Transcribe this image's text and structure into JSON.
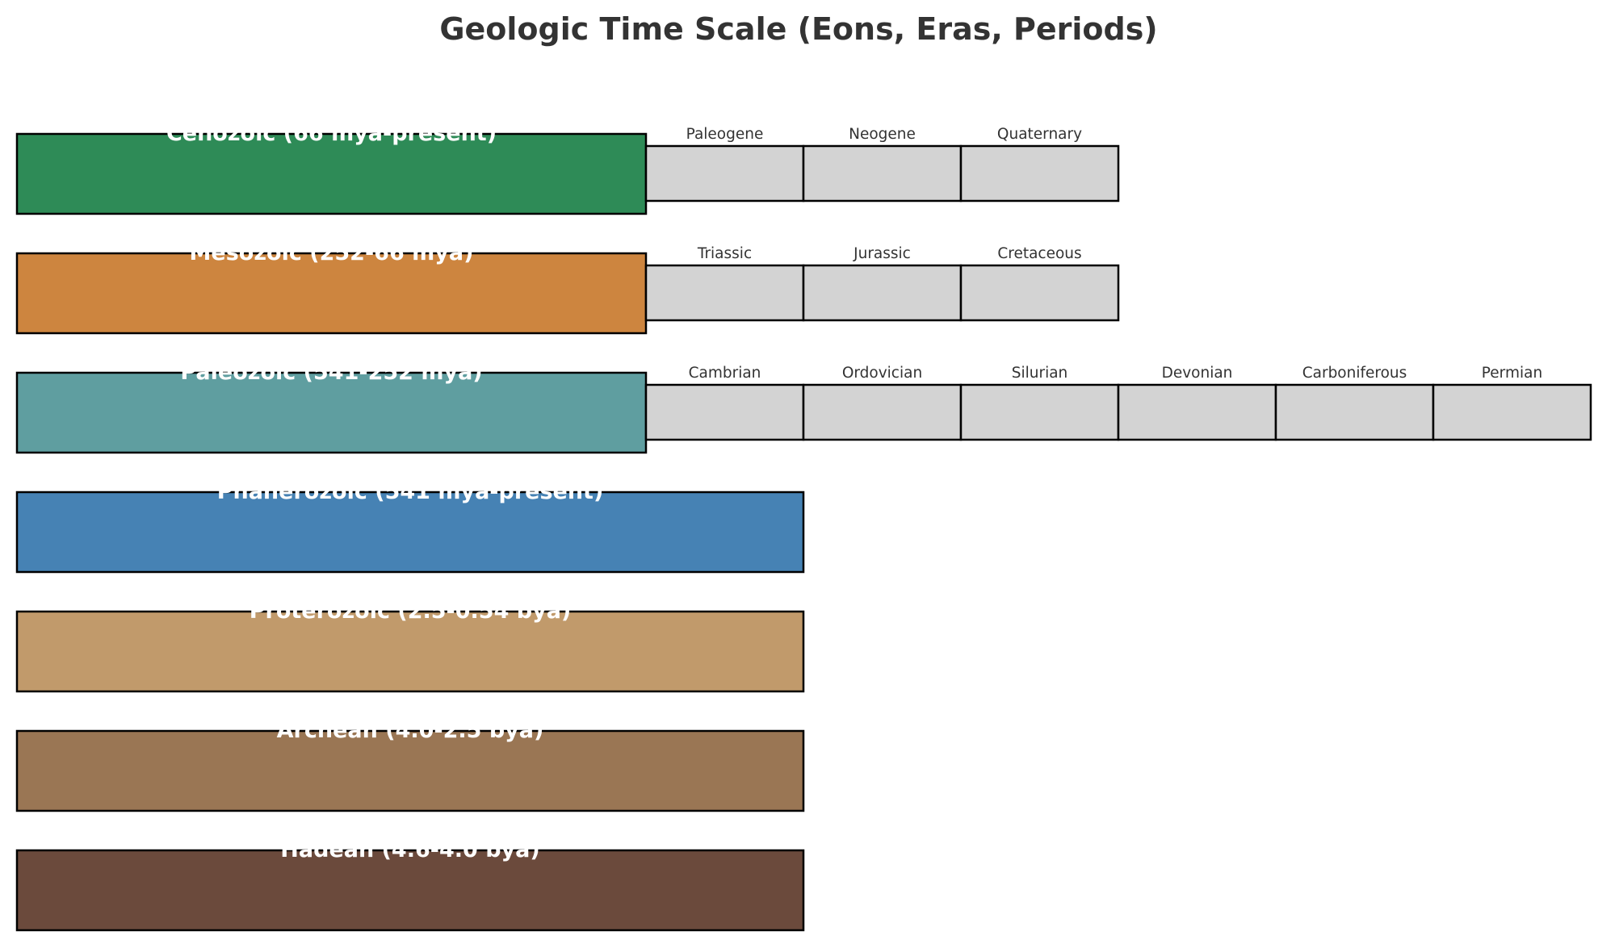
{
  "title": "Geologic Time Scale (Eons, Eras, Periods)",
  "rows": [
    {
      "label": "Cenozoic (66 mya-present)",
      "color": "#2e8b57",
      "kind": "era",
      "periods": [
        "Paleogene",
        "Neogene",
        "Quaternary"
      ]
    },
    {
      "label": "Mesozoic (252-66 mya)",
      "color": "#cd853f",
      "kind": "era",
      "periods": [
        "Triassic",
        "Jurassic",
        "Cretaceous"
      ]
    },
    {
      "label": "Paleozoic (541-252 mya)",
      "color": "#5f9ea0",
      "kind": "era",
      "periods": [
        "Cambrian",
        "Ordovician",
        "Silurian",
        "Devonian",
        "Carboniferous",
        "Permian"
      ]
    },
    {
      "label": "Phanerozoic (541 mya-present)",
      "color": "#4682b4",
      "kind": "eon",
      "periods": []
    },
    {
      "label": "Proterozoic (2.5-0.54 bya)",
      "color": "#c19a6b",
      "kind": "eon",
      "periods": []
    },
    {
      "label": "Archean (4.0-2.5 bya)",
      "color": "#9a7654",
      "kind": "eon",
      "periods": []
    },
    {
      "label": "Hadean (4.6-4.0 bya)",
      "color": "#6b4a3c",
      "kind": "eon",
      "periods": []
    }
  ]
}
